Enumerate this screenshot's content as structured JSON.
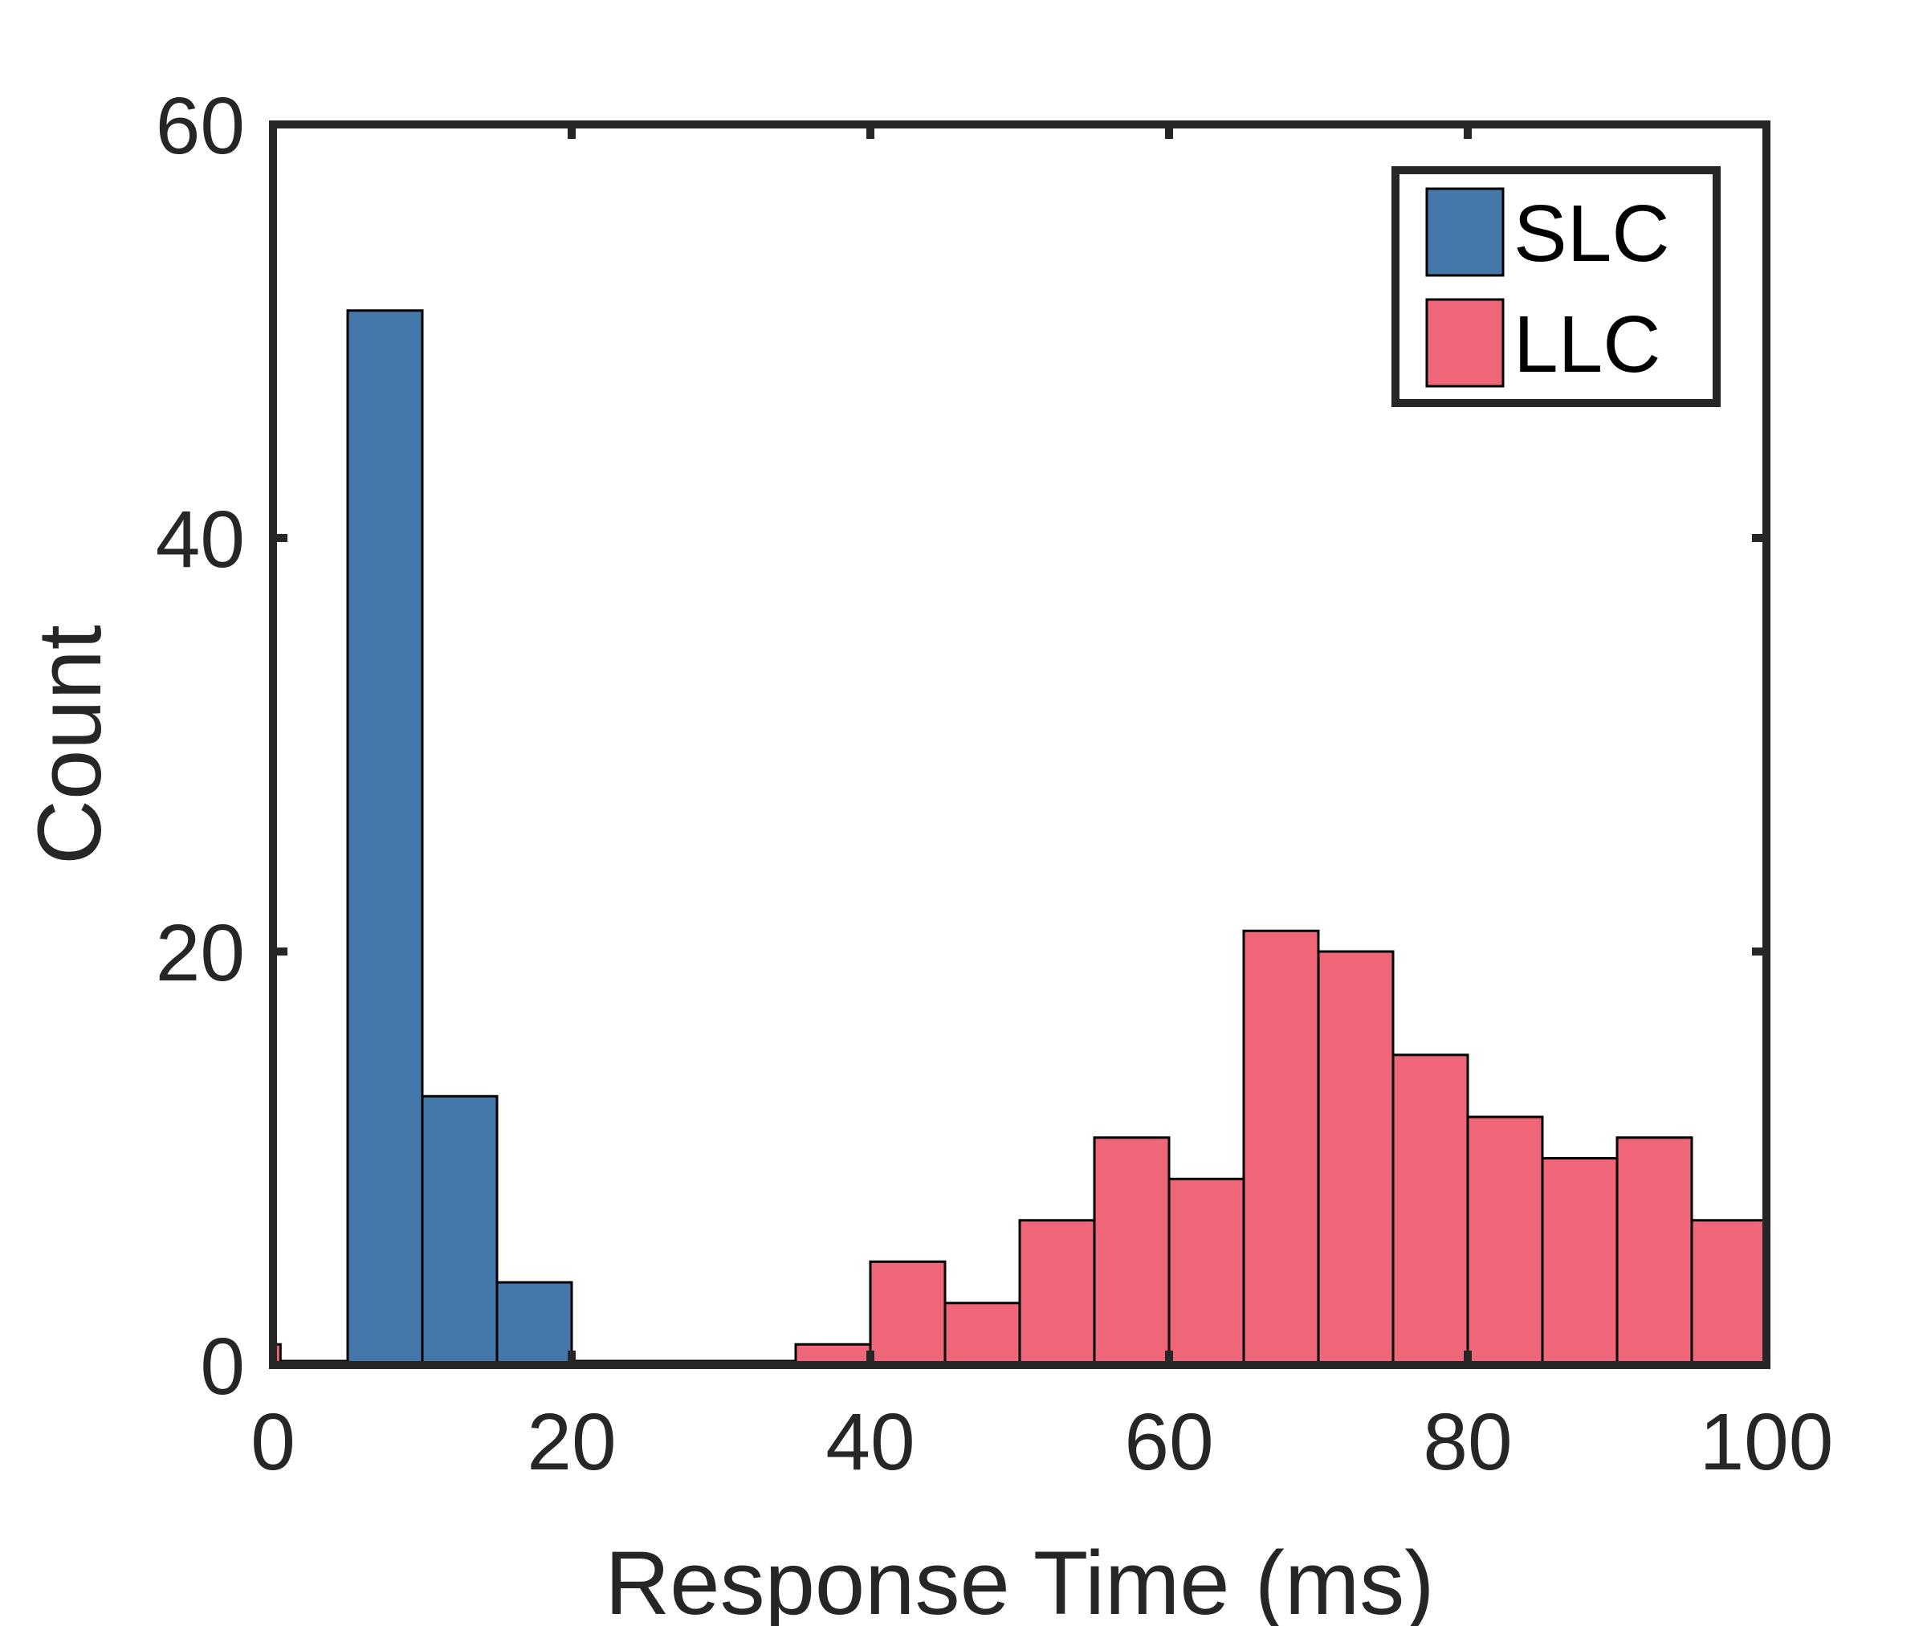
{
  "chart_data": {
    "type": "bar",
    "subtype": "histogram",
    "title": "",
    "xlabel": "Response Time (ms)",
    "ylabel": "Count",
    "xlim": [
      0,
      100
    ],
    "ylim": [
      0,
      60
    ],
    "xticks": [
      "0",
      "20",
      "40",
      "60",
      "80",
      "100"
    ],
    "yticks": [
      "0",
      "20",
      "40",
      "60"
    ],
    "bin_width": 5,
    "grid": false,
    "legend_position": "top-right",
    "series": [
      {
        "name": "SLC",
        "color": "#4477aa",
        "bins": [
          {
            "x0": 0,
            "x1": 5,
            "count": 0
          },
          {
            "x0": 5,
            "x1": 10,
            "count": 51
          },
          {
            "x0": 10,
            "x1": 15,
            "count": 13
          },
          {
            "x0": 15,
            "x1": 20,
            "count": 4
          },
          {
            "x0": 20,
            "x1": 25,
            "count": 0
          },
          {
            "x0": 25,
            "x1": 30,
            "count": 0
          },
          {
            "x0": 30,
            "x1": 35,
            "count": 0
          }
        ]
      },
      {
        "name": "LLC",
        "color": "#ee6677",
        "bins": [
          {
            "x0": 0,
            "x1": 0.5,
            "count": 1
          },
          {
            "x0": 35,
            "x1": 40,
            "count": 1
          },
          {
            "x0": 40,
            "x1": 45,
            "count": 5
          },
          {
            "x0": 45,
            "x1": 50,
            "count": 3
          },
          {
            "x0": 50,
            "x1": 55,
            "count": 7
          },
          {
            "x0": 55,
            "x1": 60,
            "count": 11
          },
          {
            "x0": 60,
            "x1": 65,
            "count": 9
          },
          {
            "x0": 65,
            "x1": 70,
            "count": 21
          },
          {
            "x0": 70,
            "x1": 75,
            "count": 20
          },
          {
            "x0": 75,
            "x1": 80,
            "count": 15
          },
          {
            "x0": 80,
            "x1": 85,
            "count": 12
          },
          {
            "x0": 85,
            "x1": 90,
            "count": 10
          },
          {
            "x0": 90,
            "x1": 95,
            "count": 11
          },
          {
            "x0": 95,
            "x1": 100,
            "count": 7
          }
        ]
      }
    ]
  }
}
